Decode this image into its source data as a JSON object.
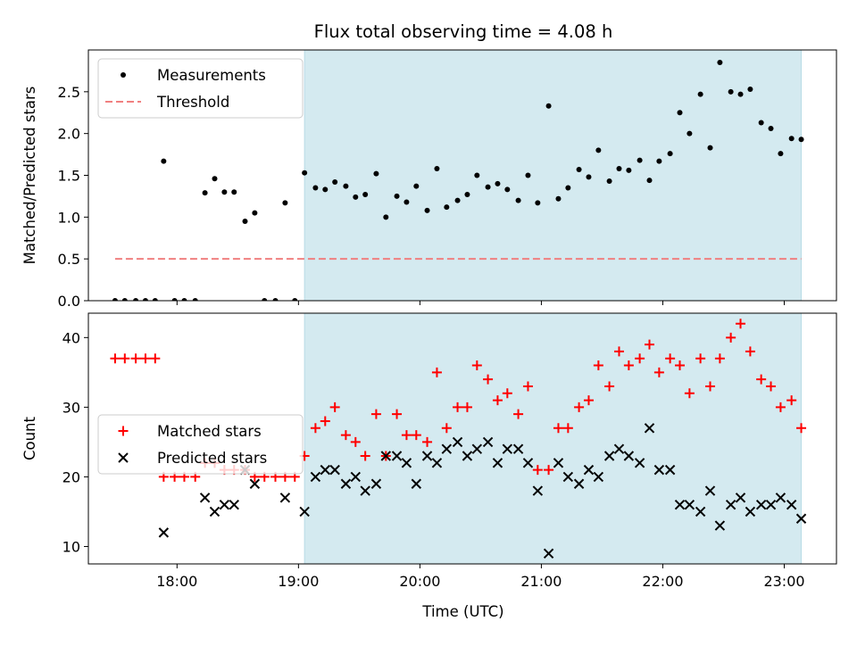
{
  "chart_data": {
    "title": "Flux total observing time = 4.08 h",
    "xlabel": "Time (UTC)",
    "x_unit": "hours UTC",
    "xlim": [
      17.27,
      23.43
    ],
    "xticks": [
      {
        "v": 18,
        "label": "18:00"
      },
      {
        "v": 19,
        "label": "19:00"
      },
      {
        "v": 20,
        "label": "20:00"
      },
      {
        "v": 21,
        "label": "21:00"
      },
      {
        "v": 22,
        "label": "22:00"
      },
      {
        "v": 23,
        "label": "23:00"
      }
    ],
    "shaded_span": [
      19.05,
      23.14
    ],
    "shade_color": "#d4eaf0",
    "panels": [
      {
        "type": "scatter",
        "ylabel": "Matched/Predicted stars",
        "ylim": [
          0,
          3.0
        ],
        "yticks": [
          0.0,
          0.5,
          1.0,
          1.5,
          2.0,
          2.5
        ],
        "ytick_labels": [
          "0.0",
          "0.5",
          "1.0",
          "1.5",
          "2.0",
          "2.5"
        ],
        "legend": "upper left",
        "series": [
          {
            "name": "Measurements",
            "marker": "dot",
            "color": "#000000",
            "x": [
              17.49,
              17.57,
              17.66,
              17.74,
              17.82,
              17.89,
              17.98,
              18.06,
              18.15,
              18.23,
              18.31,
              18.39,
              18.47,
              18.56,
              18.64,
              18.72,
              18.81,
              18.89,
              18.97,
              19.05,
              19.14,
              19.22,
              19.3,
              19.39,
              19.47,
              19.55,
              19.64,
              19.72,
              19.81,
              19.89,
              19.97,
              20.06,
              20.14,
              20.22,
              20.31,
              20.39,
              20.47,
              20.56,
              20.64,
              20.72,
              20.81,
              20.89,
              20.97,
              21.06,
              21.14,
              21.22,
              21.31,
              21.39,
              21.47,
              21.56,
              21.64,
              21.72,
              21.81,
              21.89,
              21.97,
              22.06,
              22.14,
              22.22,
              22.31,
              22.39,
              22.47,
              22.56,
              22.64,
              22.72,
              22.81,
              22.89,
              22.97,
              23.06,
              23.14
            ],
            "y": [
              0,
              0,
              0,
              0,
              0,
              1.67,
              0,
              0,
              0,
              1.29,
              1.46,
              1.3,
              1.3,
              0.95,
              1.05,
              0,
              0,
              1.17,
              0,
              1.53,
              1.35,
              1.33,
              1.42,
              1.37,
              1.24,
              1.27,
              1.52,
              1.0,
              1.25,
              1.18,
              1.37,
              1.08,
              1.58,
              1.12,
              1.2,
              1.27,
              1.5,
              1.36,
              1.4,
              1.33,
              1.2,
              1.5,
              1.17,
              2.33,
              1.22,
              1.35,
              1.57,
              1.48,
              1.8,
              1.43,
              1.58,
              1.56,
              1.68,
              1.44,
              1.67,
              1.76,
              2.25,
              2.0,
              2.47,
              1.83,
              2.85,
              2.5,
              2.47,
              2.53,
              2.13,
              2.06,
              1.76,
              1.94,
              1.93
            ]
          },
          {
            "name": "Threshold",
            "marker": "dashed-line",
            "color": "#f08080",
            "x": [
              17.49,
              23.14
            ],
            "y": [
              0.5,
              0.5
            ]
          }
        ]
      },
      {
        "type": "scatter",
        "ylabel": "Count",
        "ylim": [
          7.5,
          43.5
        ],
        "yticks": [
          10,
          20,
          30,
          40
        ],
        "ytick_labels": [
          "10",
          "20",
          "30",
          "40"
        ],
        "legend": "center left",
        "series": [
          {
            "name": "Matched stars",
            "marker": "plus",
            "color": "#ff0000",
            "x": [
              17.49,
              17.57,
              17.66,
              17.74,
              17.82,
              17.89,
              17.98,
              18.06,
              18.15,
              18.23,
              18.31,
              18.39,
              18.47,
              18.56,
              18.64,
              18.72,
              18.81,
              18.89,
              18.97,
              19.05,
              19.14,
              19.22,
              19.3,
              19.39,
              19.47,
              19.55,
              19.64,
              19.72,
              19.81,
              19.89,
              19.97,
              20.06,
              20.14,
              20.22,
              20.31,
              20.39,
              20.47,
              20.56,
              20.64,
              20.72,
              20.81,
              20.89,
              20.97,
              21.06,
              21.14,
              21.22,
              21.31,
              21.39,
              21.47,
              21.56,
              21.64,
              21.72,
              21.81,
              21.89,
              21.97,
              22.06,
              22.14,
              22.22,
              22.31,
              22.39,
              22.47,
              22.56,
              22.64,
              22.72,
              22.81,
              22.89,
              22.97,
              23.06,
              23.14
            ],
            "y": [
              37,
              37,
              37,
              37,
              37,
              20,
              20,
              20,
              20,
              22,
              22,
              21,
              21,
              21,
              20,
              20,
              20,
              20,
              20,
              23,
              27,
              28,
              30,
              26,
              25,
              23,
              29,
              23,
              29,
              26,
              26,
              25,
              35,
              27,
              30,
              30,
              36,
              34,
              31,
              32,
              29,
              33,
              21,
              21,
              27,
              27,
              30,
              31,
              36,
              33,
              38,
              36,
              37,
              39,
              35,
              37,
              36,
              32,
              37,
              33,
              37,
              40,
              42,
              38,
              34,
              33,
              30,
              31,
              27
            ]
          },
          {
            "name": "Predicted stars",
            "marker": "x",
            "color": "#000000",
            "x": [
              17.89,
              18.23,
              18.31,
              18.39,
              18.47,
              18.56,
              18.64,
              18.89,
              19.05,
              19.14,
              19.22,
              19.3,
              19.39,
              19.47,
              19.55,
              19.64,
              19.72,
              19.81,
              19.89,
              19.97,
              20.06,
              20.14,
              20.22,
              20.31,
              20.39,
              20.47,
              20.56,
              20.64,
              20.72,
              20.81,
              20.89,
              20.97,
              21.06,
              21.14,
              21.22,
              21.31,
              21.39,
              21.47,
              21.56,
              21.64,
              21.72,
              21.81,
              21.89,
              21.97,
              22.06,
              22.14,
              22.22,
              22.31,
              22.39,
              22.47,
              22.56,
              22.64,
              22.72,
              22.81,
              22.89,
              22.97,
              23.06,
              23.14
            ],
            "y": [
              12,
              17,
              15,
              16,
              16,
              21,
              19,
              17,
              15,
              20,
              21,
              21,
              19,
              20,
              18,
              19,
              23,
              23,
              22,
              19,
              23,
              22,
              24,
              25,
              23,
              24,
              25,
              22,
              24,
              24,
              22,
              18,
              9,
              22,
              20,
              19,
              21,
              20,
              23,
              24,
              23,
              22,
              27,
              21,
              21,
              16,
              16,
              15,
              18,
              13,
              16,
              17,
              15,
              16,
              16,
              17,
              16,
              14
            ]
          }
        ]
      }
    ]
  }
}
